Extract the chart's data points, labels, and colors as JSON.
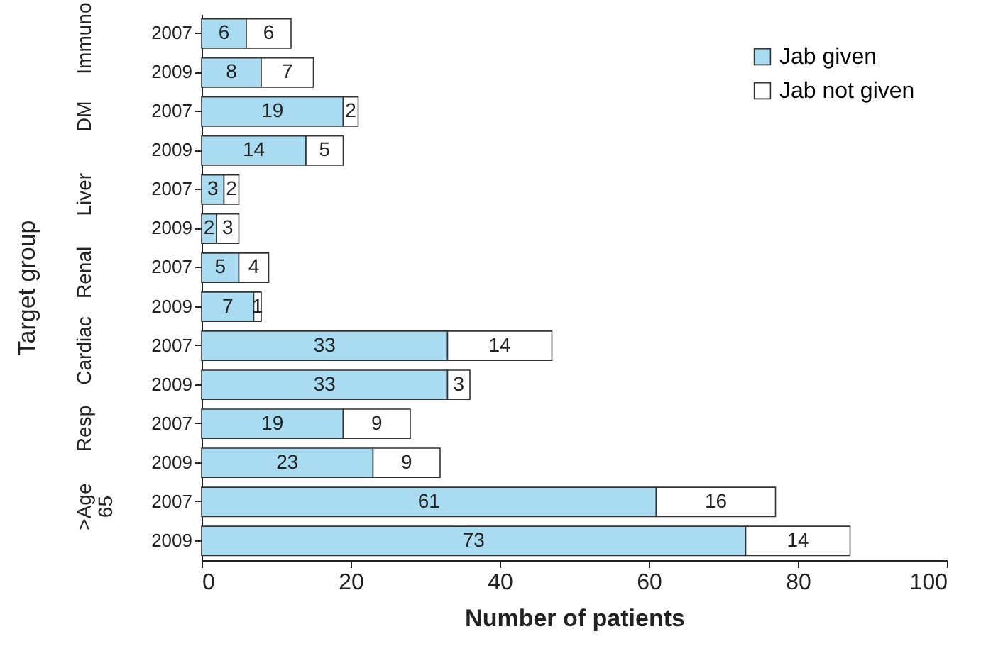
{
  "chart_data": {
    "type": "bar",
    "orientation": "horizontal",
    "stacked": true,
    "ylabel": "Target group",
    "xlabel": "Number of patients",
    "categories": [
      "2007",
      "2009",
      "2007",
      "2009",
      "2007",
      "2009",
      "2007",
      "2009",
      "2007",
      "2009",
      "2007",
      "2009",
      "2007",
      "2009"
    ],
    "series": [
      {
        "name": "Jab given",
        "color": "#a9dcf1",
        "values": [
          6,
          8,
          19,
          14,
          3,
          2,
          5,
          7,
          33,
          33,
          19,
          23,
          61,
          73
        ]
      },
      {
        "name": "Jab not given",
        "color": "#ffffff",
        "values": [
          6,
          7,
          2,
          5,
          2,
          3,
          4,
          1,
          14,
          3,
          9,
          9,
          16,
          14
        ]
      }
    ],
    "annotations": [
      "Immuno",
      "DM",
      "Liver",
      "Renal",
      "Cardiac",
      "Resp",
      ">Age 65"
    ],
    "xlim": [
      0,
      100
    ],
    "xticks": [
      0,
      20,
      40,
      60,
      80,
      100
    ],
    "data_labels": true,
    "legend": "top right",
    "grid": false
  }
}
